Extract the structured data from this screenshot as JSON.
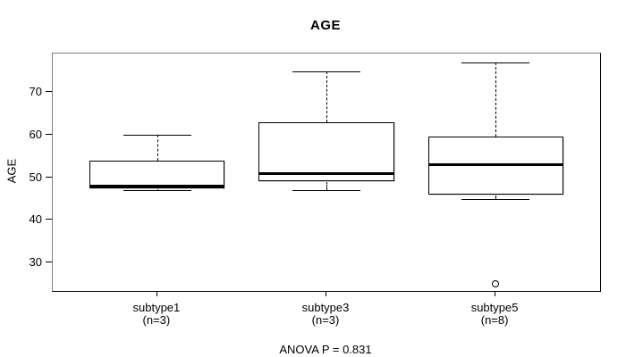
{
  "chart_data": {
    "type": "boxplot",
    "title": "AGE",
    "ylabel": "AGE",
    "xlabel": "",
    "yticks": [
      30,
      40,
      50,
      60,
      70
    ],
    "ylim": [
      23.3,
      79.1
    ],
    "grid": false,
    "groups": [
      {
        "label": "subtype1",
        "sublabel": "(n=3)",
        "n": 3,
        "whisker_low": 47,
        "q1": 47.5,
        "median": 48,
        "q3": 54,
        "whisker_high": 60,
        "outliers": []
      },
      {
        "label": "subtype3",
        "sublabel": "(n=3)",
        "n": 3,
        "whisker_low": 47,
        "q1": 49,
        "median": 51,
        "q3": 63,
        "whisker_high": 75,
        "outliers": []
      },
      {
        "label": "subtype5",
        "sublabel": "(n=8)",
        "n": 8,
        "whisker_low": 45,
        "q1": 46,
        "median": 53,
        "q3": 59.5,
        "whisker_high": 77,
        "outliers": [
          25
        ]
      }
    ],
    "annotation": "ANOVA P = 0.831",
    "layout": {
      "centers_frac": [
        0.191,
        0.5,
        0.809
      ],
      "box_width_frac": 0.247,
      "cap_width_frac": 0.1235,
      "legend": "none"
    }
  },
  "colors": {
    "background": "#ffffff",
    "text": "#000000",
    "box_border": "#000000",
    "median": "#000000",
    "whisker": "#000000",
    "frame_top_left": "#808080",
    "frame_bottom_right": "#000000"
  }
}
